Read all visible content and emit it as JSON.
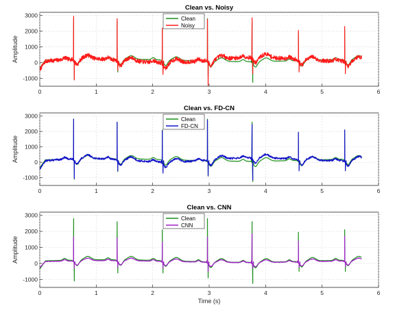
{
  "chart_data": [
    {
      "type": "line",
      "title": "Clean vs. Noisy",
      "xlabel": "",
      "ylabel": "Amplitude",
      "xlim": [
        0,
        6
      ],
      "ylim": [
        -1500,
        3200
      ],
      "xticks": [
        "0",
        "1",
        "2",
        "3",
        "4",
        "5",
        "6"
      ],
      "yticks": [
        "-1000",
        "0",
        "1000",
        "2000",
        "3000"
      ],
      "grid": true,
      "legend_position": "top-center",
      "beats": [
        0.6,
        1.37,
        2.17,
        2.97,
        3.76,
        4.58,
        5.4
      ],
      "series": [
        {
          "name": "Clean",
          "color": "#1a8f1a",
          "peaks": [
            2800,
            2600,
            2100,
            2800,
            2600,
            1950,
            2100
          ],
          "troughs": [
            -1100,
            -600,
            -600,
            -900,
            -1250,
            -500,
            -500
          ]
        },
        {
          "name": "Noisy",
          "color": "#ff1a1a",
          "peaks": [
            2950,
            2800,
            2200,
            2750,
            2850,
            2050,
            2300
          ],
          "troughs": [
            -1100,
            -500,
            -750,
            -1450,
            -700,
            -600,
            -700
          ]
        }
      ]
    },
    {
      "type": "line",
      "title": "Clean vs. FD-CN",
      "xlabel": "",
      "ylabel": "Amplitude",
      "xlim": [
        0,
        6
      ],
      "ylim": [
        -1500,
        3200
      ],
      "xticks": [
        "0",
        "1",
        "2",
        "3",
        "4",
        "5",
        "6"
      ],
      "yticks": [
        "-1000",
        "0",
        "1000",
        "2000",
        "3000"
      ],
      "grid": true,
      "legend_position": "top-center",
      "beats": [
        0.6,
        1.37,
        2.17,
        2.97,
        3.76,
        4.58,
        5.4
      ],
      "series": [
        {
          "name": "Clean",
          "color": "#1a8f1a",
          "peaks": [
            2800,
            2600,
            2100,
            2800,
            2600,
            1950,
            2100
          ],
          "troughs": [
            -1100,
            -600,
            -600,
            -900,
            -1250,
            -500,
            -500
          ]
        },
        {
          "name": "FD-CN",
          "color": "#1414c8",
          "peaks": [
            2800,
            2600,
            2050,
            2750,
            2450,
            1950,
            2100
          ],
          "troughs": [
            -1050,
            -550,
            -700,
            -850,
            -1150,
            -550,
            -550
          ]
        }
      ]
    },
    {
      "type": "line",
      "title": "Clean vs. CNN",
      "xlabel": "Time (s)",
      "ylabel": "Amplitude",
      "xlim": [
        0,
        6
      ],
      "ylim": [
        -1500,
        3200
      ],
      "xticks": [
        "0",
        "1",
        "2",
        "3",
        "4",
        "5",
        "6"
      ],
      "yticks": [
        "-1000",
        "0",
        "1000",
        "2000",
        "3000"
      ],
      "grid": true,
      "legend_position": "top-center",
      "beats": [
        0.6,
        1.37,
        2.17,
        2.97,
        3.76,
        4.58,
        5.4
      ],
      "series": [
        {
          "name": "Clean",
          "color": "#1a8f1a",
          "peaks": [
            2800,
            2600,
            2100,
            2800,
            2600,
            1950,
            2100
          ],
          "troughs": [
            -1100,
            -600,
            -600,
            -900,
            -1250,
            -500,
            -500
          ]
        },
        {
          "name": "CNN",
          "color": "#a020c8",
          "peaks": [
            1650,
            1600,
            1350,
            1650,
            1850,
            1400,
            1700
          ],
          "troughs": [
            -300,
            -250,
            -300,
            -500,
            -300,
            -250,
            -200
          ]
        }
      ]
    }
  ]
}
